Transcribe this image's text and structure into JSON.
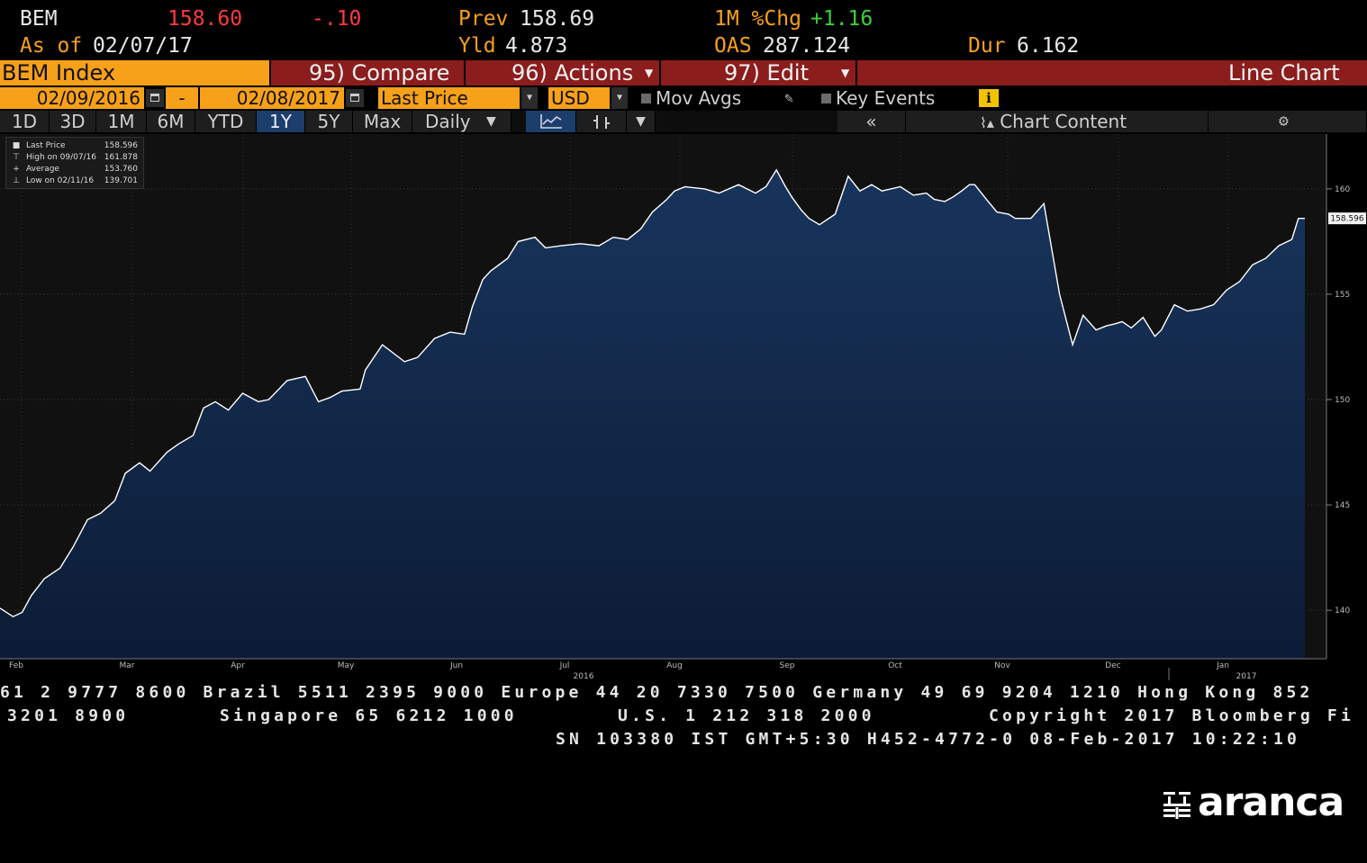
{
  "quote": {
    "ticker": "BEM",
    "last": "158.60",
    "change": "-.10",
    "prev_label": "Prev",
    "prev_value": "158.69",
    "chg_label": "1M %Chg",
    "chg_value": "+1.16",
    "asof_label": "As of",
    "asof_value": "02/07/17",
    "yld_label": "Yld",
    "yld_value": "4.873",
    "oas_label": "OAS",
    "oas_value": "287.124",
    "dur_label": "Dur",
    "dur_value": "6.162"
  },
  "title_bar": {
    "security": "BEM Index",
    "compare": "95) Compare",
    "actions": "96) Actions",
    "edit": "97) Edit",
    "chart_type": "Line Chart"
  },
  "range_row": {
    "start_date": "02/09/2016",
    "dash": "-",
    "end_date": "02/08/2017",
    "field": "Last Price",
    "currency": "USD",
    "mov_avgs": "Mov Avgs",
    "key_events": "Key Events",
    "info": "i"
  },
  "periods": {
    "items": [
      "1D",
      "3D",
      "1M",
      "6M",
      "YTD",
      "1Y",
      "5Y",
      "Max"
    ],
    "active": "1Y",
    "frequency": "Daily",
    "collapse": "«",
    "chart_content": "Chart Content"
  },
  "legend": {
    "rows": [
      {
        "mark": "■",
        "name": "Last Price",
        "value": "158.596"
      },
      {
        "mark": "⊤",
        "name": "High on 09/07/16",
        "value": "161.878"
      },
      {
        "mark": "+",
        "name": "Average",
        "value": "153.760"
      },
      {
        "mark": "⊥",
        "name": "Low on 02/11/16",
        "value": "139.701"
      }
    ]
  },
  "chart_data": {
    "type": "area",
    "title": "",
    "xlabel": "",
    "ylabel": "",
    "ylim": [
      137.7,
      162.6
    ],
    "yticks": [
      140,
      145,
      150,
      155,
      160
    ],
    "last_price_label": "158.596",
    "month_ticks": [
      "Feb",
      "Mar",
      "Apr",
      "May",
      "Jun",
      "Jul",
      "Aug",
      "Sep",
      "Oct",
      "Nov",
      "Dec",
      "Jan"
    ],
    "year_labels": [
      "2016",
      "2017"
    ],
    "x": [
      0,
      0.01,
      0.017,
      0.024,
      0.034,
      0.046,
      0.056,
      0.067,
      0.077,
      0.088,
      0.096,
      0.107,
      0.115,
      0.128,
      0.137,
      0.148,
      0.156,
      0.165,
      0.175,
      0.186,
      0.198,
      0.206,
      0.22,
      0.234,
      0.244,
      0.253,
      0.262,
      0.276,
      0.28,
      0.293,
      0.31,
      0.32,
      0.333,
      0.345,
      0.356,
      0.362,
      0.37,
      0.376,
      0.389,
      0.397,
      0.41,
      0.418,
      0.43,
      0.445,
      0.459,
      0.47,
      0.481,
      0.491,
      0.5,
      0.511,
      0.517,
      0.525,
      0.54,
      0.551,
      0.566,
      0.579,
      0.587,
      0.595,
      0.602,
      0.607,
      0.614,
      0.62,
      0.628,
      0.64,
      0.65,
      0.659,
      0.668,
      0.676,
      0.69,
      0.7,
      0.71,
      0.716,
      0.724,
      0.73,
      0.737,
      0.743,
      0.747,
      0.756,
      0.764,
      0.773,
      0.778,
      0.79,
      0.8,
      0.812,
      0.822,
      0.83,
      0.84,
      0.848,
      0.855,
      0.86,
      0.867,
      0.876,
      0.885,
      0.89,
      0.9,
      0.91,
      0.92,
      0.93,
      0.94,
      0.95,
      0.96,
      0.97,
      0.98,
      0.99,
      0.995,
      1.0
    ],
    "values": [
      140.1,
      139.7,
      139.9,
      140.7,
      141.5,
      142.0,
      143.0,
      144.3,
      144.6,
      145.2,
      146.5,
      147.0,
      146.6,
      147.5,
      147.9,
      148.3,
      149.6,
      149.9,
      149.5,
      150.3,
      149.9,
      150.0,
      150.9,
      151.1,
      149.9,
      150.1,
      150.4,
      150.5,
      151.4,
      152.6,
      151.8,
      152.0,
      152.9,
      153.2,
      153.1,
      154.4,
      155.7,
      156.1,
      156.7,
      157.5,
      157.7,
      157.2,
      157.3,
      157.4,
      157.3,
      157.7,
      157.6,
      158.1,
      158.9,
      159.5,
      159.9,
      160.1,
      160.0,
      159.8,
      160.2,
      159.8,
      160.1,
      160.9,
      160.1,
      159.6,
      159.0,
      158.6,
      158.3,
      158.8,
      160.6,
      159.9,
      160.2,
      159.9,
      160.1,
      159.7,
      159.8,
      159.5,
      159.4,
      159.6,
      159.9,
      160.2,
      160.2,
      159.5,
      158.9,
      158.8,
      158.6,
      158.6,
      159.3,
      155.0,
      152.6,
      154.0,
      153.3,
      153.5,
      153.6,
      153.7,
      153.4,
      153.9,
      153.0,
      153.3,
      154.5,
      154.2,
      154.3,
      154.5,
      155.2,
      155.6,
      156.4,
      156.7,
      157.3,
      157.6,
      158.6,
      158.6
    ]
  },
  "footer": {
    "line1": "61 2 9777 8600 Brazil 5511 2395 9000 Europe 44 20 7330 7500 Germany 49 69 9204 1210 Hong Kong 852",
    "line2a": "3201 8900",
    "line2b": "Singapore 65 6212 1000",
    "line2c": "U.S. 1 212 318 2000",
    "line2d": "Copyright 2017 Bloomberg Fi",
    "line3": "SN 103380 IST  GMT+5:30 H452-4772-0 08-Feb-2017 10:22:10"
  },
  "logo": {
    "text": "aranca"
  },
  "colors": {
    "accent_orange": "#f7a01a",
    "title_red": "#8c1d1d",
    "area_fill_top": "#18345c",
    "area_fill_bottom": "#0c1c36",
    "line": "#ffffff"
  }
}
